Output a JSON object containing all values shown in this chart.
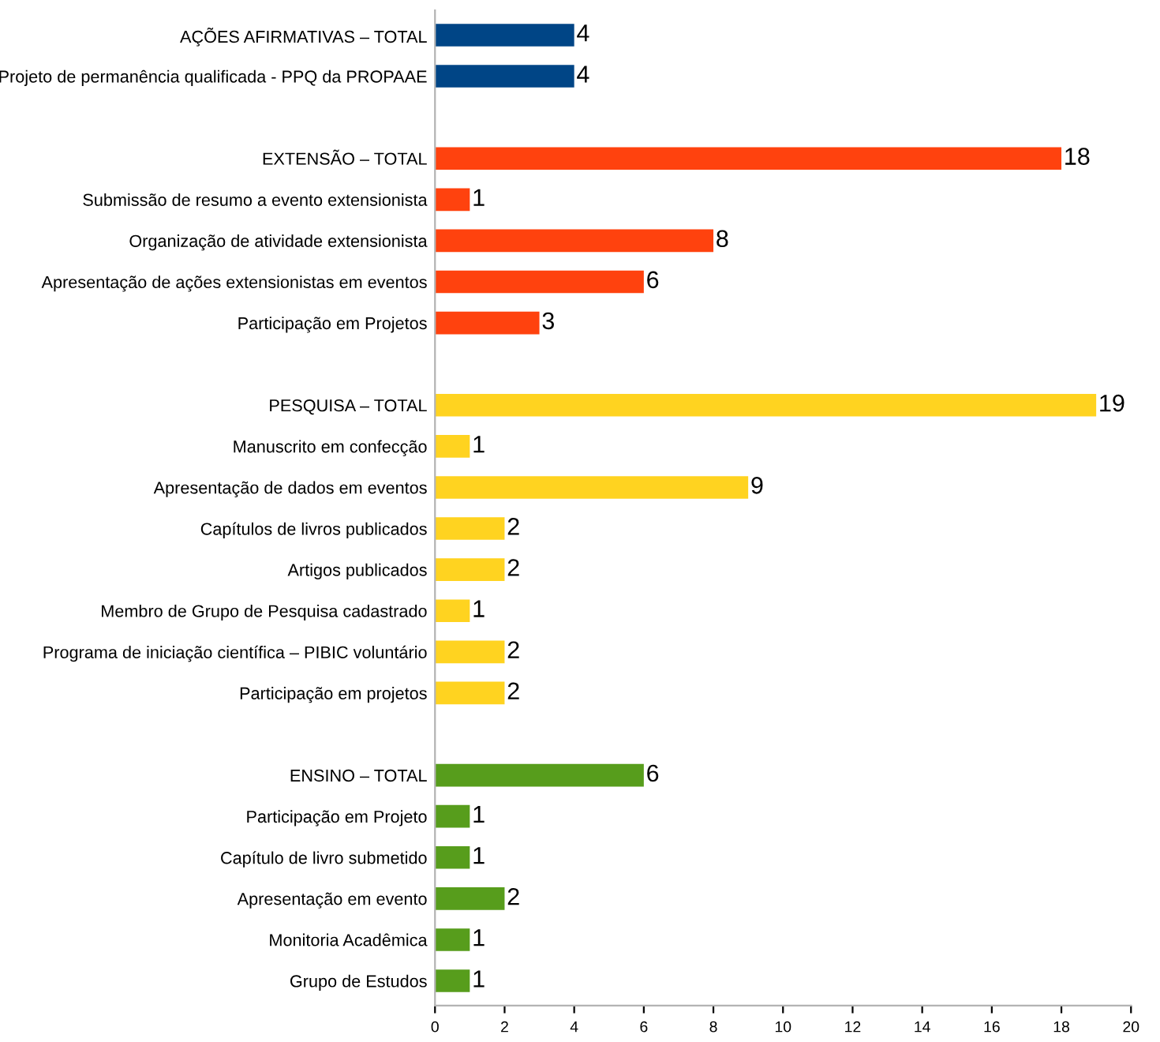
{
  "chart_data": {
    "type": "bar",
    "orientation": "horizontal",
    "data_labels": true,
    "grid": false,
    "categories": [
      "AÇÕES AFIRMATIVAS – TOTAL",
      "Projeto de permanência qualificada - PPQ da PROPAAE",
      null,
      "EXTENSÃO – TOTAL",
      "Submissão de resumo a evento extensionista",
      "Organização de atividade extensionista",
      "Apresentação de ações extensionistas em eventos",
      "Participação em Projetos",
      null,
      "PESQUISA – TOTAL",
      "Manuscrito em confecção",
      "Apresentação de dados em eventos",
      "Capítulos de livros publicados",
      "Artigos publicados",
      "Membro de Grupo de Pesquisa cadastrado",
      "Programa de iniciação científica – PIBIC voluntário",
      "Participação em projetos",
      null,
      "ENSINO – TOTAL",
      "Participação em Projeto",
      "Capítulo de livro submetido",
      "Apresentação em evento",
      "Monitoria Acadêmica",
      "Grupo de Estudos"
    ],
    "values": [
      4,
      4,
      null,
      18,
      1,
      8,
      6,
      3,
      null,
      19,
      1,
      9,
      2,
      2,
      1,
      2,
      2,
      null,
      6,
      1,
      1,
      2,
      1,
      1
    ],
    "colors": [
      "#004586",
      "#004586",
      null,
      "#ff420e",
      "#ff420e",
      "#ff420e",
      "#ff420e",
      "#ff420e",
      null,
      "#ffd320",
      "#ffd320",
      "#ffd320",
      "#ffd320",
      "#ffd320",
      "#ffd320",
      "#ffd320",
      "#ffd320",
      null,
      "#579d1c",
      "#579d1c",
      "#579d1c",
      "#579d1c",
      "#579d1c",
      "#579d1c"
    ],
    "xlim": [
      0,
      20
    ],
    "xticks": [
      0,
      2,
      4,
      6,
      8,
      10,
      12,
      14,
      16,
      18,
      20
    ]
  }
}
